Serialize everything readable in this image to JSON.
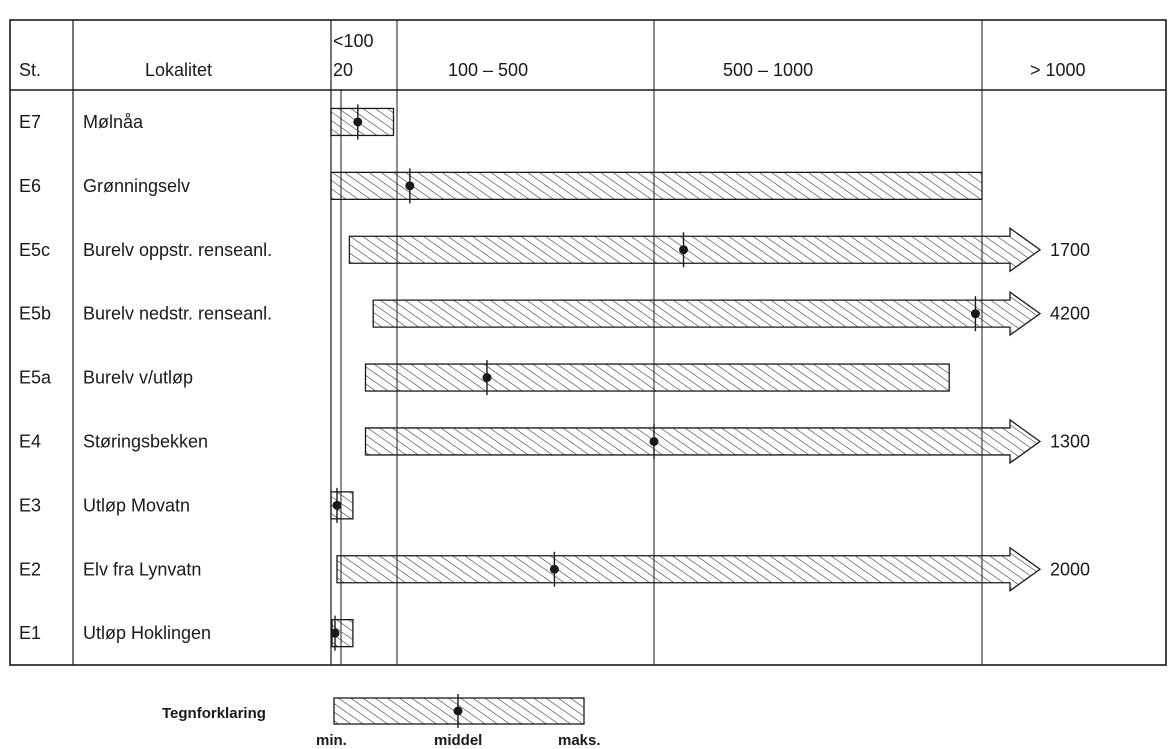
{
  "chart_data": {
    "type": "table",
    "columns": {
      "station": "St.",
      "locality": "Lokalitet",
      "ranges": [
        {
          "label": "<100",
          "sublabel": "20"
        },
        {
          "label": "100 – 500"
        },
        {
          "label": "500 – 1000"
        },
        {
          "label": "> 1000"
        }
      ]
    },
    "rows": [
      {
        "station": "E7",
        "locality": "Mølnåa",
        "min": 0,
        "mean": 44,
        "max": 95,
        "overflow": false,
        "max_label": ""
      },
      {
        "station": "E6",
        "locality": "Grønningselv",
        "min": 0,
        "mean": 120,
        "max": 1000,
        "overflow": false,
        "max_label": ""
      },
      {
        "station": "E5c",
        "locality": "Burelv oppstr. renseanl.",
        "min": 32,
        "mean": 545,
        "max": 1700,
        "overflow": true,
        "max_label": "1700"
      },
      {
        "station": "E5b",
        "locality": "Burelv nedstr. renseanl.",
        "min": 66,
        "mean": 990,
        "max": 4200,
        "overflow": true,
        "max_label": "4200"
      },
      {
        "station": "E5a",
        "locality": "Burelv v/utløp",
        "min": 55,
        "mean": 240,
        "max": 950,
        "overflow": false,
        "max_label": ""
      },
      {
        "station": "E4",
        "locality": "Støringsbekken",
        "min": 55,
        "mean": 500,
        "max": 1300,
        "overflow": true,
        "max_label": "1300"
      },
      {
        "station": "E3",
        "locality": "Utløp Movatn",
        "min": 0,
        "mean": 12,
        "max": 37,
        "overflow": false,
        "max_label": ""
      },
      {
        "station": "E2",
        "locality": "Elv fra Lynvatn",
        "min": 12,
        "mean": 345,
        "max": 2000,
        "overflow": true,
        "max_label": "2000"
      },
      {
        "station": "E1",
        "locality": "Utløp Hoklingen",
        "min": 2,
        "mean": 8,
        "max": 37,
        "overflow": false,
        "max_label": ""
      }
    ],
    "legend": {
      "title": "Tegnforklaring",
      "min_label": "min.",
      "mean_label": "middel",
      "max_label": "maks."
    }
  }
}
